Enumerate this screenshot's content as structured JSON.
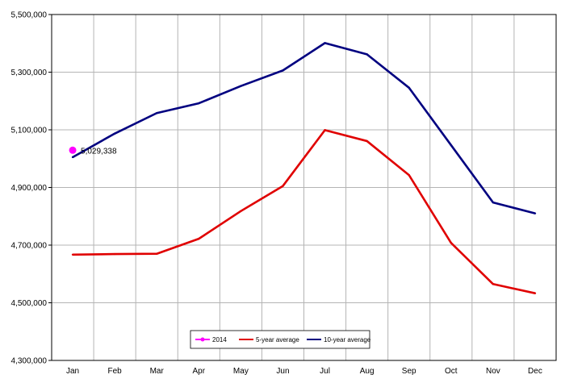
{
  "chart_data": {
    "type": "line",
    "title": "",
    "xlabel": "",
    "ylabel": "",
    "categories": [
      "Jan",
      "Feb",
      "Mar",
      "Apr",
      "May",
      "Jun",
      "Jul",
      "Aug",
      "Sep",
      "Oct",
      "Nov",
      "Dec"
    ],
    "ylim": [
      4300000,
      5500000
    ],
    "yticks": [
      4300000,
      4500000,
      4700000,
      4900000,
      5100000,
      5300000,
      5500000
    ],
    "ytick_labels": [
      "4,300,000",
      "4,500,000",
      "4,700,000",
      "4,900,000",
      "5,100,000",
      "5,300,000",
      "5,500,000"
    ],
    "grid": true,
    "legend_position": "bottom-center",
    "series": [
      {
        "name": "2014",
        "color": "#ff00ff",
        "style": "point",
        "values": [
          5029338,
          null,
          null,
          null,
          null,
          null,
          null,
          null,
          null,
          null,
          null,
          null
        ],
        "data_labels": [
          "5,029,338"
        ]
      },
      {
        "name": "5-year average",
        "color": "#e00000",
        "style": "line",
        "values": [
          4667000,
          4669000,
          4670000,
          4722000,
          4818000,
          4905000,
          5099000,
          5061000,
          4943000,
          4708000,
          4565000,
          4533000
        ]
      },
      {
        "name": "10-year average",
        "color": "#000080",
        "style": "line",
        "values": [
          5005000,
          5087000,
          5158000,
          5192000,
          5252000,
          5306000,
          5401000,
          5362000,
          5246000,
          5047000,
          4848000,
          4810000
        ]
      }
    ]
  }
}
